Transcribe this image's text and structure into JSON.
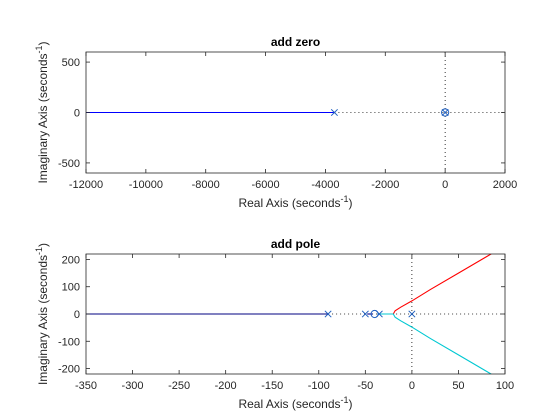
{
  "chart_data": [
    {
      "type": "line",
      "title": "add zero",
      "xlabel": "Real Axis (seconds",
      "ylabel": "Imaginary Axis (seconds",
      "label_exponent": "-1",
      "label_suffix": ")",
      "xlim": [
        -12000,
        2000
      ],
      "ylim": [
        -600,
        600
      ],
      "xticks": [
        -12000,
        -10000,
        -8000,
        -6000,
        -4000,
        -2000,
        0,
        2000
      ],
      "yticks": [
        -500,
        0,
        500
      ],
      "grid": false,
      "series": [
        {
          "color": "#0000ff",
          "points": [
            [
              -12000,
              0
            ],
            [
              -3700,
              0
            ]
          ]
        }
      ],
      "asymptote_dotted": [
        [
          -3700,
          0
        ],
        [
          2000,
          0
        ]
      ],
      "vertical_dotted": 0,
      "poles": [
        [
          -3700,
          0
        ],
        [
          0,
          0
        ]
      ],
      "zeros": [
        [
          0,
          0
        ]
      ],
      "marker_color": "#1f5fbf"
    },
    {
      "type": "line",
      "title": "add pole",
      "xlabel": "Real Axis (seconds",
      "ylabel": "Imaginary Axis (seconds",
      "label_exponent": "-1",
      "label_suffix": ")",
      "xlim": [
        -350,
        100
      ],
      "ylim": [
        -220,
        220
      ],
      "xticks": [
        -350,
        -300,
        -250,
        -200,
        -150,
        -100,
        -50,
        0,
        50,
        100
      ],
      "yticks": [
        -200,
        -100,
        0,
        100,
        200
      ],
      "grid": false,
      "series": [
        {
          "color": "#000080",
          "points": [
            [
              -350,
              0
            ],
            [
              -90,
              0
            ]
          ]
        },
        {
          "color": "#00008b",
          "points": [
            [
              -48,
              0
            ],
            [
              -42,
              0
            ]
          ]
        },
        {
          "color": "#ff0000",
          "points": [
            [
              -37,
              0
            ],
            [
              -20,
              0
            ],
            [
              -18,
              12
            ],
            [
              -12,
              25
            ],
            [
              0,
              48
            ],
            [
              20,
              90
            ],
            [
              50,
              150
            ],
            [
              80,
              210
            ],
            [
              90,
              230
            ]
          ]
        },
        {
          "color": "#00c8d2",
          "points": [
            [
              -37,
              0
            ],
            [
              -20,
              0
            ],
            [
              -18,
              -12
            ],
            [
              -12,
              -25
            ],
            [
              0,
              -48
            ],
            [
              20,
              -90
            ],
            [
              50,
              -150
            ],
            [
              80,
              -210
            ],
            [
              90,
              -230
            ]
          ]
        }
      ],
      "asymptote_dotted": [
        [
          -90,
          0
        ],
        [
          100,
          0
        ]
      ],
      "vertical_dotted": 0,
      "poles": [
        [
          -90,
          0
        ],
        [
          -50,
          0
        ],
        [
          -35,
          0
        ],
        [
          0,
          0
        ]
      ],
      "zeros": [
        [
          -40,
          0
        ]
      ],
      "marker_color": "#1f5fbf"
    }
  ]
}
